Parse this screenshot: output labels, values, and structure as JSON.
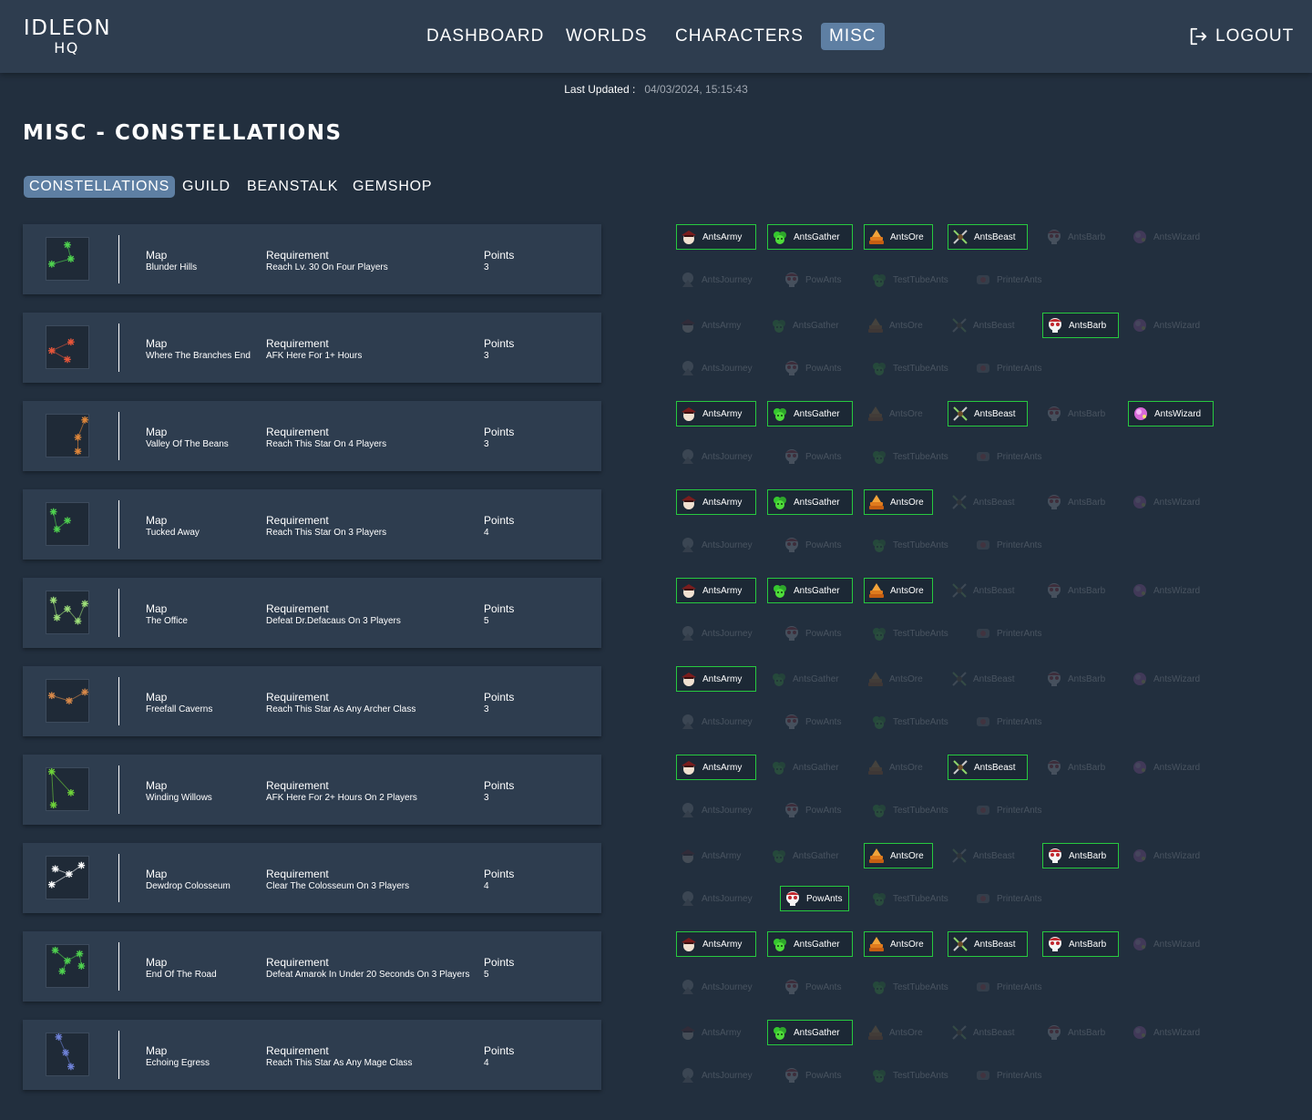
{
  "header": {
    "logo_line1": "IDLEON",
    "logo_line2": "HQ",
    "nav": [
      "DASHBOARD",
      "WORLDS",
      "CHARACTERS",
      "MISC"
    ],
    "active_nav": "MISC",
    "logout_label": "LOGOUT"
  },
  "last_updated": {
    "label": "Last Updated :",
    "value": "04/03/2024, 15:15:43"
  },
  "page_title": "MISC - CONSTELLATIONS",
  "subtabs": [
    "CONSTELLATIONS",
    "GUILD",
    "BEANSTALK",
    "GEMSHOP"
  ],
  "active_subtab": "CONSTELLATIONS",
  "labels": {
    "map": "Map",
    "requirement": "Requirement",
    "points": "Points"
  },
  "character_icons": {
    "AntsArmy": "pirate-hat-icon",
    "AntsGather": "green-blob-icon",
    "AntsOre": "orange-stack-icon",
    "AntsBeast": "crossed-swords-icon",
    "AntsBarb": "red-skull-icon",
    "AntsWizard": "pink-orb-icon",
    "AntsJourney": "grey-sprite-icon",
    "PowAnts": "red-skull-icon",
    "TestTubeAnts": "green-blob-icon",
    "PrinterAnts": "dark-sprite-icon"
  },
  "constellations": [
    {
      "map": "Blunder Hills",
      "requirement": "Reach Lv. 30 On Four Players",
      "points": "3",
      "color": "#4fd34f",
      "characters": [
        {
          "name": "AntsArmy",
          "done": true
        },
        {
          "name": "AntsGather",
          "done": true
        },
        {
          "name": "AntsOre",
          "done": true
        },
        {
          "name": "AntsBeast",
          "done": true
        },
        {
          "name": "AntsBarb",
          "done": false
        },
        {
          "name": "AntsWizard",
          "done": false
        },
        {
          "name": "AntsJourney",
          "done": false
        },
        {
          "name": "PowAnts",
          "done": false
        },
        {
          "name": "TestTubeAnts",
          "done": false
        },
        {
          "name": "PrinterAnts",
          "done": false
        }
      ]
    },
    {
      "map": "Where The Branches End",
      "requirement": "AFK Here For 1+ Hours",
      "points": "3",
      "color": "#e8563a",
      "characters": [
        {
          "name": "AntsArmy",
          "done": false
        },
        {
          "name": "AntsGather",
          "done": false
        },
        {
          "name": "AntsOre",
          "done": false
        },
        {
          "name": "AntsBeast",
          "done": false
        },
        {
          "name": "AntsBarb",
          "done": true
        },
        {
          "name": "AntsWizard",
          "done": false
        },
        {
          "name": "AntsJourney",
          "done": false
        },
        {
          "name": "PowAnts",
          "done": false
        },
        {
          "name": "TestTubeAnts",
          "done": false
        },
        {
          "name": "PrinterAnts",
          "done": false
        }
      ]
    },
    {
      "map": "Valley Of The Beans",
      "requirement": "Reach This Star On 4 Players",
      "points": "3",
      "color": "#e0873a",
      "characters": [
        {
          "name": "AntsArmy",
          "done": true
        },
        {
          "name": "AntsGather",
          "done": true
        },
        {
          "name": "AntsOre",
          "done": false
        },
        {
          "name": "AntsBeast",
          "done": true
        },
        {
          "name": "AntsBarb",
          "done": false
        },
        {
          "name": "AntsWizard",
          "done": true
        },
        {
          "name": "AntsJourney",
          "done": false
        },
        {
          "name": "PowAnts",
          "done": false
        },
        {
          "name": "TestTubeAnts",
          "done": false
        },
        {
          "name": "PrinterAnts",
          "done": false
        }
      ]
    },
    {
      "map": "Tucked Away",
      "requirement": "Reach This Star On 3 Players",
      "points": "4",
      "color": "#4fd34f",
      "characters": [
        {
          "name": "AntsArmy",
          "done": true
        },
        {
          "name": "AntsGather",
          "done": true
        },
        {
          "name": "AntsOre",
          "done": true
        },
        {
          "name": "AntsBeast",
          "done": false
        },
        {
          "name": "AntsBarb",
          "done": false
        },
        {
          "name": "AntsWizard",
          "done": false
        },
        {
          "name": "AntsJourney",
          "done": false
        },
        {
          "name": "PowAnts",
          "done": false
        },
        {
          "name": "TestTubeAnts",
          "done": false
        },
        {
          "name": "PrinterAnts",
          "done": false
        }
      ]
    },
    {
      "map": "The Office",
      "requirement": "Defeat Dr.Defacaus On 3 Players",
      "points": "5",
      "color": "#9fe07a",
      "characters": [
        {
          "name": "AntsArmy",
          "done": true
        },
        {
          "name": "AntsGather",
          "done": true
        },
        {
          "name": "AntsOre",
          "done": true
        },
        {
          "name": "AntsBeast",
          "done": false
        },
        {
          "name": "AntsBarb",
          "done": false
        },
        {
          "name": "AntsWizard",
          "done": false
        },
        {
          "name": "AntsJourney",
          "done": false
        },
        {
          "name": "PowAnts",
          "done": false
        },
        {
          "name": "TestTubeAnts",
          "done": false
        },
        {
          "name": "PrinterAnts",
          "done": false
        }
      ]
    },
    {
      "map": "Freefall Caverns",
      "requirement": "Reach This Star As Any Archer Class",
      "points": "3",
      "color": "#d98a4a",
      "characters": [
        {
          "name": "AntsArmy",
          "done": true
        },
        {
          "name": "AntsGather",
          "done": false
        },
        {
          "name": "AntsOre",
          "done": false
        },
        {
          "name": "AntsBeast",
          "done": false
        },
        {
          "name": "AntsBarb",
          "done": false
        },
        {
          "name": "AntsWizard",
          "done": false
        },
        {
          "name": "AntsJourney",
          "done": false
        },
        {
          "name": "PowAnts",
          "done": false
        },
        {
          "name": "TestTubeAnts",
          "done": false
        },
        {
          "name": "PrinterAnts",
          "done": false
        }
      ]
    },
    {
      "map": "Winding Willows",
      "requirement": "AFK Here For 2+ Hours On 2 Players",
      "points": "3",
      "color": "#6fd43a",
      "characters": [
        {
          "name": "AntsArmy",
          "done": true
        },
        {
          "name": "AntsGather",
          "done": false
        },
        {
          "name": "AntsOre",
          "done": false
        },
        {
          "name": "AntsBeast",
          "done": true
        },
        {
          "name": "AntsBarb",
          "done": false
        },
        {
          "name": "AntsWizard",
          "done": false
        },
        {
          "name": "AntsJourney",
          "done": false
        },
        {
          "name": "PowAnts",
          "done": false
        },
        {
          "name": "TestTubeAnts",
          "done": false
        },
        {
          "name": "PrinterAnts",
          "done": false
        }
      ]
    },
    {
      "map": "Dewdrop Colosseum",
      "requirement": "Clear The Colosseum On 3 Players",
      "points": "4",
      "color": "#ffffff",
      "characters": [
        {
          "name": "AntsArmy",
          "done": false
        },
        {
          "name": "AntsGather",
          "done": false
        },
        {
          "name": "AntsOre",
          "done": true
        },
        {
          "name": "AntsBeast",
          "done": false
        },
        {
          "name": "AntsBarb",
          "done": true
        },
        {
          "name": "AntsWizard",
          "done": false
        },
        {
          "name": "AntsJourney",
          "done": false
        },
        {
          "name": "PowAnts",
          "done": true
        },
        {
          "name": "TestTubeAnts",
          "done": false
        },
        {
          "name": "PrinterAnts",
          "done": false
        }
      ]
    },
    {
      "map": "End Of The Road",
      "requirement": "Defeat Amarok In Under 20 Seconds On 3 Players",
      "points": "5",
      "color": "#4fd34f",
      "characters": [
        {
          "name": "AntsArmy",
          "done": true
        },
        {
          "name": "AntsGather",
          "done": true
        },
        {
          "name": "AntsOre",
          "done": true
        },
        {
          "name": "AntsBeast",
          "done": true
        },
        {
          "name": "AntsBarb",
          "done": true
        },
        {
          "name": "AntsWizard",
          "done": false
        },
        {
          "name": "AntsJourney",
          "done": false
        },
        {
          "name": "PowAnts",
          "done": false
        },
        {
          "name": "TestTubeAnts",
          "done": false
        },
        {
          "name": "PrinterAnts",
          "done": false
        }
      ]
    },
    {
      "map": "Echoing Egress",
      "requirement": "Reach This Star As Any Mage Class",
      "points": "4",
      "color": "#6f82d8",
      "characters": [
        {
          "name": "AntsArmy",
          "done": false
        },
        {
          "name": "AntsGather",
          "done": true
        },
        {
          "name": "AntsOre",
          "done": false
        },
        {
          "name": "AntsBeast",
          "done": false
        },
        {
          "name": "AntsBarb",
          "done": false
        },
        {
          "name": "AntsWizard",
          "done": false
        },
        {
          "name": "AntsJourney",
          "done": false
        },
        {
          "name": "PowAnts",
          "done": false
        },
        {
          "name": "TestTubeAnts",
          "done": false
        },
        {
          "name": "PrinterAnts",
          "done": false
        }
      ]
    }
  ]
}
